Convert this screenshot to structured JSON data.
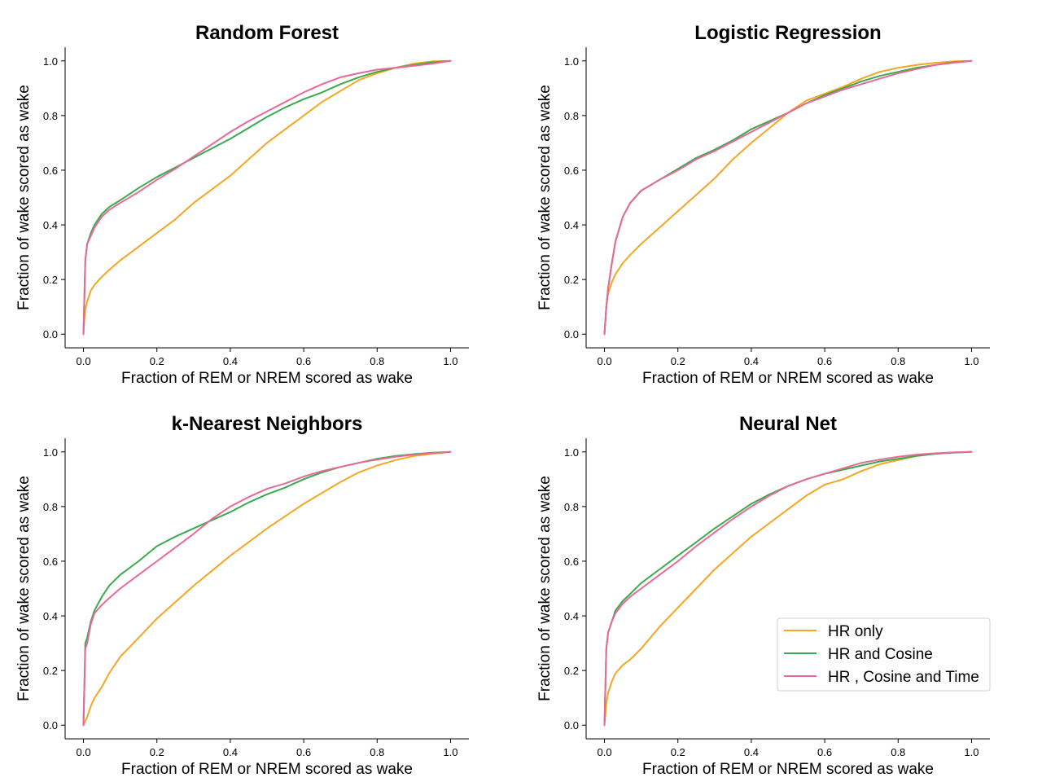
{
  "chart_data": [
    {
      "type": "line",
      "title": "Random Forest",
      "xlabel": "Fraction of REM or NREM scored as wake",
      "ylabel": "Fraction of wake scored as wake",
      "xlim": [
        -0.05,
        1.05
      ],
      "ylim": [
        -0.05,
        1.05
      ],
      "xticks": [
        "0.0",
        "0.2",
        "0.4",
        "0.6",
        "0.8",
        "1.0"
      ],
      "yticks": [
        "0.0",
        "0.2",
        "0.4",
        "0.6",
        "0.8",
        "1.0"
      ],
      "grid": false,
      "series": [
        {
          "name": "HR only",
          "x": [
            0,
            0.002,
            0.005,
            0.01,
            0.02,
            0.03,
            0.05,
            0.07,
            0.1,
            0.15,
            0.2,
            0.25,
            0.3,
            0.35,
            0.4,
            0.45,
            0.5,
            0.55,
            0.6,
            0.65,
            0.7,
            0.75,
            0.8,
            0.85,
            0.9,
            0.95,
            1.0
          ],
          "y": [
            0,
            0.05,
            0.09,
            0.12,
            0.16,
            0.18,
            0.21,
            0.235,
            0.27,
            0.32,
            0.37,
            0.42,
            0.48,
            0.53,
            0.58,
            0.64,
            0.7,
            0.75,
            0.8,
            0.85,
            0.89,
            0.93,
            0.955,
            0.975,
            0.99,
            0.998,
            1.0
          ]
        },
        {
          "name": "HR and Cosine",
          "x": [
            0,
            0.005,
            0.01,
            0.02,
            0.03,
            0.05,
            0.07,
            0.1,
            0.15,
            0.2,
            0.25,
            0.3,
            0.35,
            0.4,
            0.45,
            0.5,
            0.55,
            0.6,
            0.65,
            0.7,
            0.75,
            0.8,
            0.85,
            0.9,
            0.95,
            1.0
          ],
          "y": [
            0,
            0.27,
            0.33,
            0.37,
            0.4,
            0.44,
            0.465,
            0.49,
            0.535,
            0.575,
            0.61,
            0.645,
            0.68,
            0.715,
            0.755,
            0.795,
            0.83,
            0.86,
            0.885,
            0.915,
            0.94,
            0.96,
            0.975,
            0.985,
            0.995,
            1.0
          ]
        },
        {
          "name": "HR , Cosine and Time",
          "x": [
            0,
            0.005,
            0.01,
            0.02,
            0.03,
            0.05,
            0.07,
            0.1,
            0.15,
            0.2,
            0.25,
            0.3,
            0.35,
            0.4,
            0.45,
            0.5,
            0.55,
            0.6,
            0.65,
            0.7,
            0.75,
            0.8,
            0.85,
            0.9,
            0.95,
            1.0
          ],
          "y": [
            0,
            0.27,
            0.33,
            0.36,
            0.39,
            0.43,
            0.455,
            0.48,
            0.52,
            0.565,
            0.605,
            0.65,
            0.695,
            0.74,
            0.78,
            0.815,
            0.85,
            0.885,
            0.915,
            0.94,
            0.955,
            0.968,
            0.975,
            0.982,
            0.99,
            1.0
          ]
        }
      ]
    },
    {
      "type": "line",
      "title": "Logistic Regression",
      "xlabel": "Fraction of REM or NREM scored as wake",
      "ylabel": "Fraction of wake scored as wake",
      "xlim": [
        -0.05,
        1.05
      ],
      "ylim": [
        -0.05,
        1.05
      ],
      "xticks": [
        "0.0",
        "0.2",
        "0.4",
        "0.6",
        "0.8",
        "1.0"
      ],
      "yticks": [
        "0.0",
        "0.2",
        "0.4",
        "0.6",
        "0.8",
        "1.0"
      ],
      "grid": false,
      "series": [
        {
          "name": "HR only",
          "x": [
            0,
            0.005,
            0.01,
            0.02,
            0.03,
            0.05,
            0.07,
            0.1,
            0.15,
            0.2,
            0.25,
            0.3,
            0.35,
            0.4,
            0.45,
            0.5,
            0.55,
            0.6,
            0.65,
            0.7,
            0.75,
            0.8,
            0.85,
            0.9,
            0.95,
            1.0
          ],
          "y": [
            0,
            0.1,
            0.15,
            0.19,
            0.22,
            0.26,
            0.29,
            0.33,
            0.39,
            0.45,
            0.51,
            0.57,
            0.64,
            0.7,
            0.755,
            0.81,
            0.855,
            0.88,
            0.905,
            0.935,
            0.96,
            0.975,
            0.985,
            0.993,
            0.998,
            1.0
          ]
        },
        {
          "name": "HR and Cosine",
          "x": [
            0,
            0.005,
            0.01,
            0.02,
            0.03,
            0.05,
            0.07,
            0.1,
            0.15,
            0.2,
            0.25,
            0.3,
            0.35,
            0.4,
            0.45,
            0.5,
            0.55,
            0.6,
            0.65,
            0.7,
            0.75,
            0.8,
            0.85,
            0.9,
            0.95,
            1.0
          ],
          "y": [
            0,
            0.1,
            0.17,
            0.26,
            0.34,
            0.43,
            0.48,
            0.525,
            0.565,
            0.605,
            0.645,
            0.675,
            0.71,
            0.75,
            0.78,
            0.81,
            0.845,
            0.875,
            0.9,
            0.925,
            0.945,
            0.96,
            0.975,
            0.985,
            0.995,
            1.0
          ]
        },
        {
          "name": "HR , Cosine and Time",
          "x": [
            0,
            0.005,
            0.01,
            0.02,
            0.03,
            0.05,
            0.07,
            0.1,
            0.15,
            0.2,
            0.25,
            0.3,
            0.35,
            0.4,
            0.45,
            0.5,
            0.55,
            0.6,
            0.65,
            0.7,
            0.75,
            0.8,
            0.85,
            0.9,
            0.95,
            1.0
          ],
          "y": [
            0,
            0.1,
            0.17,
            0.26,
            0.34,
            0.43,
            0.48,
            0.525,
            0.565,
            0.6,
            0.64,
            0.67,
            0.705,
            0.74,
            0.775,
            0.81,
            0.845,
            0.87,
            0.895,
            0.915,
            0.935,
            0.955,
            0.97,
            0.985,
            0.993,
            1.0
          ]
        }
      ]
    },
    {
      "type": "line",
      "title": "k-Nearest Neighbors",
      "xlabel": "Fraction of REM or NREM scored as wake",
      "ylabel": "Fraction of wake scored as wake",
      "xlim": [
        -0.05,
        1.05
      ],
      "ylim": [
        -0.05,
        1.05
      ],
      "xticks": [
        "0.0",
        "0.2",
        "0.4",
        "0.6",
        "0.8",
        "1.0"
      ],
      "yticks": [
        "0.0",
        "0.2",
        "0.4",
        "0.6",
        "0.8",
        "1.0"
      ],
      "grid": false,
      "series": [
        {
          "name": "HR only",
          "x": [
            0,
            0.01,
            0.02,
            0.03,
            0.05,
            0.07,
            0.1,
            0.15,
            0.2,
            0.25,
            0.3,
            0.35,
            0.4,
            0.45,
            0.5,
            0.55,
            0.6,
            0.65,
            0.7,
            0.75,
            0.8,
            0.85,
            0.9,
            0.95,
            1.0
          ],
          "y": [
            0,
            0.03,
            0.07,
            0.1,
            0.14,
            0.19,
            0.25,
            0.32,
            0.39,
            0.45,
            0.51,
            0.565,
            0.62,
            0.67,
            0.72,
            0.765,
            0.81,
            0.85,
            0.89,
            0.925,
            0.95,
            0.97,
            0.985,
            0.993,
            1.0
          ]
        },
        {
          "name": "HR and Cosine",
          "x": [
            0,
            0.005,
            0.01,
            0.02,
            0.03,
            0.05,
            0.07,
            0.1,
            0.15,
            0.2,
            0.25,
            0.3,
            0.35,
            0.4,
            0.45,
            0.5,
            0.55,
            0.6,
            0.65,
            0.7,
            0.75,
            0.8,
            0.85,
            0.9,
            0.95,
            1.0
          ],
          "y": [
            0,
            0.3,
            0.32,
            0.38,
            0.42,
            0.47,
            0.51,
            0.55,
            0.6,
            0.655,
            0.69,
            0.72,
            0.75,
            0.78,
            0.815,
            0.845,
            0.87,
            0.9,
            0.925,
            0.945,
            0.96,
            0.975,
            0.985,
            0.992,
            0.997,
            1.0
          ]
        },
        {
          "name": "HR , Cosine and Time",
          "x": [
            0,
            0.005,
            0.01,
            0.02,
            0.03,
            0.05,
            0.07,
            0.1,
            0.15,
            0.2,
            0.25,
            0.3,
            0.35,
            0.4,
            0.45,
            0.5,
            0.55,
            0.6,
            0.65,
            0.7,
            0.75,
            0.8,
            0.85,
            0.9,
            0.95,
            1.0
          ],
          "y": [
            0,
            0.28,
            0.3,
            0.37,
            0.41,
            0.44,
            0.465,
            0.5,
            0.55,
            0.6,
            0.65,
            0.7,
            0.755,
            0.8,
            0.835,
            0.865,
            0.885,
            0.91,
            0.93,
            0.945,
            0.96,
            0.972,
            0.982,
            0.99,
            0.996,
            1.0
          ]
        }
      ]
    },
    {
      "type": "line",
      "title": "Neural Net",
      "xlabel": "Fraction of REM or NREM scored as wake",
      "ylabel": "Fraction of wake scored as wake",
      "xlim": [
        -0.05,
        1.05
      ],
      "ylim": [
        -0.05,
        1.05
      ],
      "xticks": [
        "0.0",
        "0.2",
        "0.4",
        "0.6",
        "0.8",
        "1.0"
      ],
      "yticks": [
        "0.0",
        "0.2",
        "0.4",
        "0.6",
        "0.8",
        "1.0"
      ],
      "grid": false,
      "legend": "lower-right",
      "series": [
        {
          "name": "HR only",
          "x": [
            0,
            0.005,
            0.01,
            0.02,
            0.03,
            0.05,
            0.07,
            0.1,
            0.15,
            0.2,
            0.25,
            0.3,
            0.35,
            0.4,
            0.45,
            0.5,
            0.55,
            0.6,
            0.65,
            0.7,
            0.75,
            0.8,
            0.85,
            0.9,
            0.95,
            1.0
          ],
          "y": [
            0,
            0.08,
            0.12,
            0.16,
            0.19,
            0.22,
            0.24,
            0.28,
            0.36,
            0.43,
            0.5,
            0.57,
            0.63,
            0.69,
            0.74,
            0.79,
            0.84,
            0.88,
            0.9,
            0.93,
            0.955,
            0.97,
            0.985,
            0.993,
            0.998,
            1.0
          ]
        },
        {
          "name": "HR and Cosine",
          "x": [
            0,
            0.005,
            0.01,
            0.02,
            0.03,
            0.05,
            0.07,
            0.1,
            0.15,
            0.2,
            0.25,
            0.3,
            0.35,
            0.4,
            0.45,
            0.5,
            0.55,
            0.6,
            0.65,
            0.7,
            0.75,
            0.8,
            0.85,
            0.9,
            0.95,
            1.0
          ],
          "y": [
            0,
            0.28,
            0.34,
            0.38,
            0.42,
            0.455,
            0.48,
            0.52,
            0.57,
            0.62,
            0.67,
            0.72,
            0.765,
            0.81,
            0.845,
            0.875,
            0.9,
            0.92,
            0.935,
            0.95,
            0.965,
            0.975,
            0.985,
            0.993,
            0.997,
            1.0
          ]
        },
        {
          "name": "HR , Cosine and Time",
          "x": [
            0,
            0.005,
            0.01,
            0.02,
            0.03,
            0.05,
            0.07,
            0.1,
            0.15,
            0.2,
            0.25,
            0.3,
            0.35,
            0.4,
            0.45,
            0.5,
            0.55,
            0.6,
            0.65,
            0.7,
            0.75,
            0.8,
            0.85,
            0.9,
            0.95,
            1.0
          ],
          "y": [
            0,
            0.28,
            0.34,
            0.38,
            0.41,
            0.445,
            0.47,
            0.5,
            0.55,
            0.6,
            0.655,
            0.705,
            0.755,
            0.8,
            0.84,
            0.875,
            0.9,
            0.92,
            0.94,
            0.96,
            0.972,
            0.982,
            0.99,
            0.995,
            0.998,
            1.0
          ]
        }
      ]
    }
  ],
  "colors": {
    "HR only": "#f5a623",
    "HR and Cosine": "#3aab4a",
    "HR , Cosine and Time": "#e8689a",
    "axis": "#000000"
  }
}
